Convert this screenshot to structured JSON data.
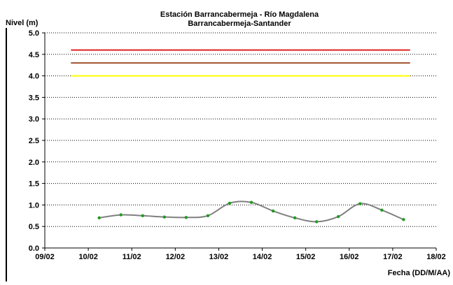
{
  "chart_data": {
    "type": "line",
    "title": "Estación Barrancabermeja - Río Magdalena",
    "subtitle": "Barrancabermeja-Santander",
    "ylabel": "Nivel (m)",
    "xlabel": "Fecha (DD/M/AA)",
    "ylim": [
      0.0,
      5.0
    ],
    "yticks": [
      0.0,
      0.5,
      1.0,
      1.5,
      2.0,
      2.5,
      3.0,
      3.5,
      4.0,
      4.5,
      5.0
    ],
    "ytick_labels": [
      "0.0",
      "0.5",
      "1.0",
      "1.5",
      "2.0",
      "2.5",
      "3.0",
      "3.5",
      "4.0",
      "4.5",
      "5.0"
    ],
    "xlim": [
      0,
      9
    ],
    "xticks": [
      0,
      1,
      2,
      3,
      4,
      5,
      6,
      7,
      8,
      9
    ],
    "xtick_labels": [
      "09/02",
      "10/02",
      "11/02",
      "12/02",
      "13/02",
      "14/02",
      "15/02",
      "16/02",
      "17/02",
      "18/02"
    ],
    "grid": true,
    "series": [
      {
        "color": "#808080",
        "marker_color": "#1f9a1f",
        "x": [
          1.25,
          1.75,
          2.25,
          2.75,
          3.25,
          3.75,
          4.25,
          4.75,
          5.25,
          5.75,
          6.25,
          6.75,
          7.25,
          7.75,
          8.25
        ],
        "values": [
          0.7,
          0.77,
          0.75,
          0.72,
          0.71,
          0.75,
          1.04,
          1.06,
          0.86,
          0.7,
          0.61,
          0.73,
          1.03,
          0.88,
          0.66
        ]
      }
    ],
    "reference_lines": [
      {
        "y": 4.6,
        "color": "#e02020",
        "x_range": [
          0.6,
          8.4
        ]
      },
      {
        "y": 4.3,
        "color": "#a0522d",
        "x_range": [
          0.6,
          8.4
        ]
      },
      {
        "y": 4.0,
        "color": "#ffff00",
        "x_range": [
          0.6,
          8.4
        ]
      }
    ]
  }
}
